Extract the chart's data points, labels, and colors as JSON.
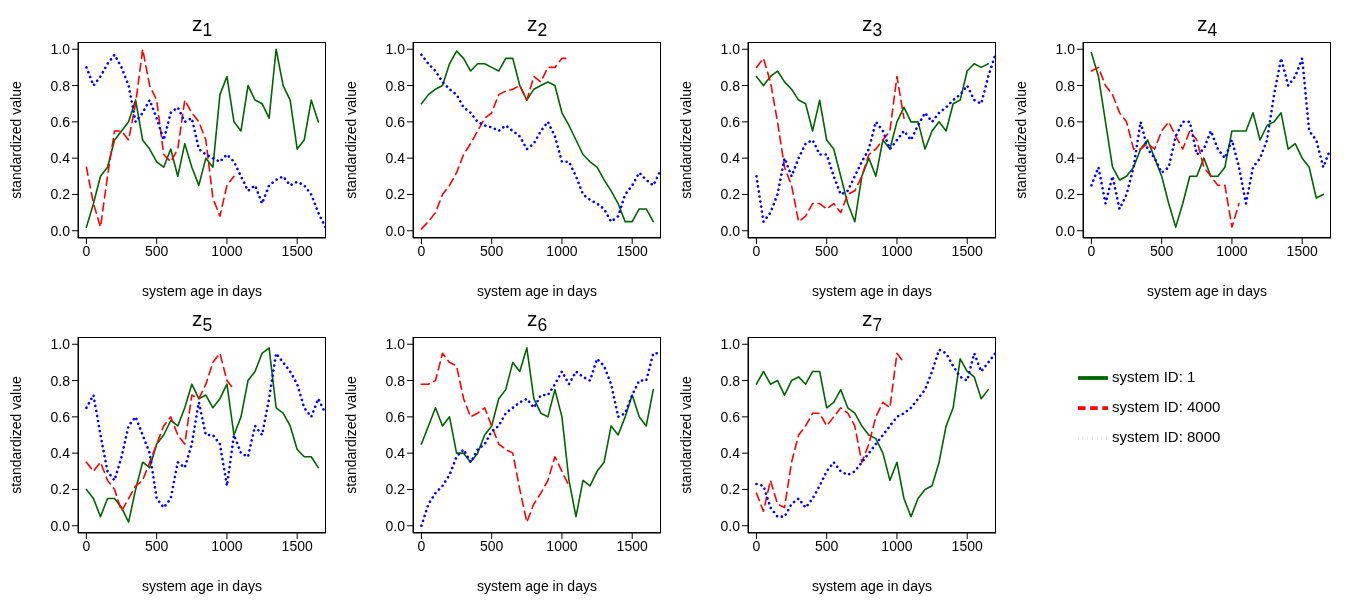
{
  "chart_data": [
    {
      "type": "line",
      "title": "z$_{1}$",
      "xlabel": "system age in days",
      "ylabel": "standardized value",
      "xlim": [
        -60,
        1705
      ],
      "xticks": [
        0,
        500,
        1000,
        1500
      ],
      "ylim": [
        -0.04,
        1.04
      ],
      "yticks": [
        {
          "value": 0,
          "label": "0.0"
        },
        {
          "value": 0.2,
          "label": "0.2"
        },
        {
          "value": 0.4,
          "label": "0.4"
        },
        {
          "value": 0.6,
          "label": "0.6"
        },
        {
          "value": 0.8,
          "label": "0.8"
        },
        {
          "value": 1,
          "label": "1.0"
        }
      ],
      "grid": false,
      "legend": false,
      "series": [
        {
          "color": "#006400",
          "line_style": "solid",
          "x": [
            0,
            50,
            100,
            150,
            200,
            250,
            300,
            350,
            400,
            450,
            500,
            550,
            600,
            650,
            700,
            750,
            800,
            850,
            900,
            950,
            1000,
            1050,
            1100,
            1150,
            1200,
            1250,
            1300,
            1350,
            1400,
            1450,
            1500,
            1550,
            1600,
            1650
          ],
          "values": [
            0.02,
            0.15,
            0.3,
            0.35,
            0.5,
            0.55,
            0.6,
            0.72,
            0.5,
            0.45,
            0.38,
            0.35,
            0.45,
            0.3,
            0.48,
            0.35,
            0.25,
            0.4,
            0.35,
            0.75,
            0.85,
            0.6,
            0.55,
            0.8,
            0.72,
            0.7,
            0.62,
            1.0,
            0.8,
            0.72,
            0.45,
            0.5,
            0.72,
            0.6
          ]
        },
        {
          "color": "#ff0000",
          "line_style": "dashed",
          "x": [
            0,
            50,
            100,
            150,
            200,
            250,
            300,
            350,
            400,
            450,
            500,
            550,
            600,
            650,
            700,
            750,
            800,
            850,
            900,
            950,
            1000,
            1050
          ],
          "values": [
            0.35,
            0.15,
            0.02,
            0.3,
            0.55,
            0.55,
            0.5,
            0.7,
            1.0,
            0.8,
            0.72,
            0.42,
            0.38,
            0.45,
            0.72,
            0.65,
            0.6,
            0.5,
            0.18,
            0.08,
            0.25,
            0.3
          ]
        },
        {
          "color": "#0000ff",
          "line_style": "dotted",
          "x": [
            0,
            50,
            100,
            150,
            200,
            250,
            300,
            350,
            400,
            450,
            500,
            550,
            600,
            650,
            700,
            750,
            800,
            850,
            900,
            950,
            1000,
            1050,
            1100,
            1150,
            1200,
            1250,
            1300,
            1350,
            1400,
            1450,
            1500,
            1550,
            1600,
            1650,
            1700
          ],
          "values": [
            0.9,
            0.8,
            0.85,
            0.92,
            0.97,
            0.9,
            0.8,
            0.6,
            0.65,
            0.72,
            0.62,
            0.5,
            0.65,
            0.68,
            0.6,
            0.62,
            0.45,
            0.42,
            0.4,
            0.38,
            0.42,
            0.38,
            0.3,
            0.22,
            0.25,
            0.15,
            0.25,
            0.28,
            0.3,
            0.25,
            0.27,
            0.25,
            0.2,
            0.1,
            0.02
          ]
        }
      ]
    },
    {
      "type": "line",
      "title": "z$_{2}$",
      "xlabel": "system age in days",
      "ylabel": "standardized value",
      "xlim": [
        -60,
        1705
      ],
      "xticks": [
        0,
        500,
        1000,
        1500
      ],
      "ylim": [
        -0.04,
        1.04
      ],
      "yticks": [
        {
          "value": 0,
          "label": "0.0"
        },
        {
          "value": 0.2,
          "label": "0.2"
        },
        {
          "value": 0.4,
          "label": "0.4"
        },
        {
          "value": 0.6,
          "label": "0.6"
        },
        {
          "value": 0.8,
          "label": "0.8"
        },
        {
          "value": 1,
          "label": "1.0"
        }
      ],
      "grid": false,
      "legend": false,
      "series": [
        {
          "color": "#006400",
          "line_style": "solid",
          "x": [
            0,
            50,
            100,
            150,
            200,
            250,
            300,
            350,
            400,
            450,
            500,
            550,
            600,
            650,
            700,
            750,
            800,
            850,
            900,
            950,
            1000,
            1050,
            1100,
            1150,
            1200,
            1250,
            1300,
            1350,
            1400,
            1450,
            1500,
            1550,
            1600,
            1650
          ],
          "values": [
            0.7,
            0.75,
            0.78,
            0.8,
            0.92,
            0.99,
            0.95,
            0.88,
            0.92,
            0.92,
            0.9,
            0.88,
            0.95,
            0.95,
            0.8,
            0.72,
            0.78,
            0.8,
            0.82,
            0.8,
            0.65,
            0.58,
            0.5,
            0.42,
            0.38,
            0.35,
            0.28,
            0.22,
            0.15,
            0.05,
            0.05,
            0.12,
            0.12,
            0.05
          ]
        },
        {
          "color": "#ff0000",
          "line_style": "dashed",
          "x": [
            0,
            50,
            100,
            150,
            200,
            250,
            300,
            350,
            400,
            450,
            500,
            550,
            600,
            650,
            700,
            750,
            800,
            850,
            900,
            950,
            1000,
            1050
          ],
          "values": [
            0.01,
            0.05,
            0.1,
            0.2,
            0.25,
            0.32,
            0.42,
            0.48,
            0.55,
            0.62,
            0.65,
            0.75,
            0.77,
            0.78,
            0.8,
            0.72,
            0.85,
            0.82,
            0.9,
            0.9,
            0.95,
            0.95
          ]
        },
        {
          "color": "#0000ff",
          "line_style": "dotted",
          "x": [
            0,
            50,
            100,
            150,
            200,
            250,
            300,
            350,
            400,
            450,
            500,
            550,
            600,
            650,
            700,
            750,
            800,
            850,
            900,
            950,
            1000,
            1050,
            1100,
            1150,
            1200,
            1250,
            1300,
            1350,
            1400,
            1450,
            1500,
            1550,
            1600,
            1650,
            1700
          ],
          "values": [
            0.97,
            0.92,
            0.88,
            0.82,
            0.78,
            0.75,
            0.68,
            0.65,
            0.6,
            0.58,
            0.57,
            0.55,
            0.58,
            0.55,
            0.52,
            0.45,
            0.48,
            0.55,
            0.6,
            0.52,
            0.38,
            0.38,
            0.3,
            0.2,
            0.17,
            0.15,
            0.12,
            0.05,
            0.08,
            0.2,
            0.25,
            0.32,
            0.28,
            0.25,
            0.33
          ]
        }
      ]
    },
    {
      "type": "line",
      "title": "z$_{3}$",
      "xlabel": "system age in days",
      "ylabel": "standardized value",
      "xlim": [
        -60,
        1705
      ],
      "xticks": [
        0,
        500,
        1000,
        1500
      ],
      "ylim": [
        -0.04,
        1.04
      ],
      "yticks": [
        {
          "value": 0,
          "label": "0.0"
        },
        {
          "value": 0.2,
          "label": "0.2"
        },
        {
          "value": 0.4,
          "label": "0.4"
        },
        {
          "value": 0.6,
          "label": "0.6"
        },
        {
          "value": 0.8,
          "label": "0.8"
        },
        {
          "value": 1,
          "label": "1.0"
        }
      ],
      "grid": false,
      "legend": false,
      "series": [
        {
          "color": "#006400",
          "line_style": "solid",
          "x": [
            0,
            50,
            100,
            150,
            200,
            250,
            300,
            350,
            400,
            450,
            500,
            550,
            600,
            650,
            700,
            750,
            800,
            850,
            900,
            950,
            1000,
            1050,
            1100,
            1150,
            1200,
            1250,
            1300,
            1350,
            1400,
            1450,
            1500,
            1550,
            1600,
            1650
          ],
          "values": [
            0.85,
            0.8,
            0.85,
            0.88,
            0.82,
            0.78,
            0.72,
            0.7,
            0.55,
            0.72,
            0.5,
            0.45,
            0.3,
            0.15,
            0.05,
            0.3,
            0.4,
            0.3,
            0.5,
            0.45,
            0.6,
            0.68,
            0.6,
            0.6,
            0.45,
            0.55,
            0.6,
            0.55,
            0.7,
            0.72,
            0.88,
            0.92,
            0.9,
            0.92
          ]
        },
        {
          "color": "#ff0000",
          "line_style": "dashed",
          "x": [
            0,
            50,
            100,
            150,
            200,
            250,
            300,
            350,
            400,
            450,
            500,
            550,
            600,
            650,
            700,
            750,
            800,
            850,
            900,
            950,
            1000,
            1050
          ],
          "values": [
            0.9,
            0.95,
            0.82,
            0.6,
            0.35,
            0.25,
            0.05,
            0.08,
            0.15,
            0.15,
            0.12,
            0.15,
            0.1,
            0.2,
            0.22,
            0.3,
            0.42,
            0.45,
            0.5,
            0.55,
            0.85,
            0.62
          ]
        },
        {
          "color": "#0000ff",
          "line_style": "dotted",
          "x": [
            0,
            50,
            100,
            150,
            200,
            250,
            300,
            350,
            400,
            450,
            500,
            550,
            600,
            650,
            700,
            750,
            800,
            850,
            900,
            950,
            1000,
            1050,
            1100,
            1150,
            1200,
            1250,
            1300,
            1350,
            1400,
            1450,
            1500,
            1550,
            1600,
            1650,
            1700
          ],
          "values": [
            0.3,
            0.05,
            0.1,
            0.2,
            0.4,
            0.3,
            0.4,
            0.48,
            0.5,
            0.42,
            0.42,
            0.3,
            0.2,
            0.22,
            0.3,
            0.38,
            0.45,
            0.6,
            0.55,
            0.45,
            0.5,
            0.55,
            0.5,
            0.58,
            0.65,
            0.6,
            0.65,
            0.68,
            0.72,
            0.75,
            0.8,
            0.72,
            0.7,
            0.85,
            0.97
          ]
        }
      ]
    },
    {
      "type": "line",
      "title": "z$_{4}$",
      "xlabel": "system age in days",
      "ylabel": "standardized value",
      "xlim": [
        -60,
        1705
      ],
      "xticks": [
        0,
        500,
        1000,
        1500
      ],
      "ylim": [
        -0.04,
        1.04
      ],
      "yticks": [
        {
          "value": 0,
          "label": "0.0"
        },
        {
          "value": 0.2,
          "label": "0.2"
        },
        {
          "value": 0.4,
          "label": "0.4"
        },
        {
          "value": 0.6,
          "label": "0.6"
        },
        {
          "value": 0.8,
          "label": "0.8"
        },
        {
          "value": 1,
          "label": "1.0"
        }
      ],
      "grid": false,
      "legend": false,
      "series": [
        {
          "color": "#006400",
          "line_style": "solid",
          "x": [
            0,
            50,
            100,
            150,
            200,
            250,
            300,
            350,
            400,
            450,
            500,
            550,
            600,
            650,
            700,
            750,
            800,
            850,
            900,
            950,
            1000,
            1050,
            1100,
            1150,
            1200,
            1250,
            1300,
            1350,
            1400,
            1450,
            1500,
            1550,
            1600,
            1650
          ],
          "values": [
            0.98,
            0.85,
            0.6,
            0.35,
            0.28,
            0.3,
            0.35,
            0.45,
            0.5,
            0.4,
            0.3,
            0.15,
            0.02,
            0.15,
            0.3,
            0.3,
            0.4,
            0.3,
            0.3,
            0.35,
            0.55,
            0.55,
            0.55,
            0.65,
            0.5,
            0.58,
            0.6,
            0.65,
            0.45,
            0.48,
            0.4,
            0.35,
            0.18,
            0.2
          ]
        },
        {
          "color": "#ff0000",
          "line_style": "dashed",
          "x": [
            0,
            50,
            100,
            150,
            200,
            250,
            300,
            350,
            400,
            450,
            500,
            550,
            600,
            650,
            700,
            750,
            800,
            850,
            900,
            950,
            1000,
            1050
          ],
          "values": [
            0.88,
            0.9,
            0.8,
            0.75,
            0.65,
            0.6,
            0.45,
            0.45,
            0.48,
            0.45,
            0.55,
            0.6,
            0.52,
            0.45,
            0.55,
            0.5,
            0.35,
            0.3,
            0.25,
            0.25,
            0.02,
            0.15
          ]
        },
        {
          "color": "#0000ff",
          "line_style": "dotted",
          "x": [
            0,
            50,
            100,
            150,
            200,
            250,
            300,
            350,
            400,
            450,
            500,
            550,
            600,
            650,
            700,
            750,
            800,
            850,
            900,
            950,
            1000,
            1050,
            1100,
            1150,
            1200,
            1250,
            1300,
            1350,
            1400,
            1450,
            1500,
            1550,
            1600,
            1650,
            1700
          ],
          "values": [
            0.25,
            0.35,
            0.15,
            0.3,
            0.12,
            0.2,
            0.35,
            0.6,
            0.45,
            0.4,
            0.32,
            0.35,
            0.52,
            0.6,
            0.6,
            0.42,
            0.45,
            0.55,
            0.45,
            0.4,
            0.5,
            0.35,
            0.15,
            0.35,
            0.4,
            0.5,
            0.75,
            0.95,
            0.8,
            0.85,
            0.95,
            0.55,
            0.5,
            0.35,
            0.45
          ]
        }
      ]
    },
    {
      "type": "line",
      "title": "z$_{5}$",
      "xlabel": "system age in days",
      "ylabel": "standardized value",
      "xlim": [
        -60,
        1705
      ],
      "xticks": [
        0,
        500,
        1000,
        1500
      ],
      "ylim": [
        -0.04,
        1.04
      ],
      "yticks": [
        {
          "value": 0,
          "label": "0.0"
        },
        {
          "value": 0.2,
          "label": "0.2"
        },
        {
          "value": 0.4,
          "label": "0.4"
        },
        {
          "value": 0.6,
          "label": "0.6"
        },
        {
          "value": 0.8,
          "label": "0.8"
        },
        {
          "value": 1,
          "label": "1.0"
        }
      ],
      "grid": false,
      "legend": false,
      "series": [
        {
          "color": "#006400",
          "line_style": "solid",
          "x": [
            0,
            50,
            100,
            150,
            200,
            250,
            300,
            350,
            400,
            450,
            500,
            550,
            600,
            650,
            700,
            750,
            800,
            850,
            900,
            950,
            1000,
            1050,
            1100,
            1150,
            1200,
            1250,
            1300,
            1350,
            1400,
            1450,
            1500,
            1550,
            1600,
            1650
          ],
          "values": [
            0.2,
            0.15,
            0.05,
            0.15,
            0.15,
            0.1,
            0.02,
            0.2,
            0.35,
            0.32,
            0.45,
            0.5,
            0.58,
            0.55,
            0.65,
            0.78,
            0.7,
            0.72,
            0.65,
            0.7,
            0.78,
            0.5,
            0.6,
            0.8,
            0.85,
            0.95,
            0.98,
            0.65,
            0.62,
            0.55,
            0.42,
            0.38,
            0.38,
            0.32
          ]
        },
        {
          "color": "#ff0000",
          "line_style": "dashed",
          "x": [
            0,
            50,
            100,
            150,
            200,
            250,
            300,
            350,
            400,
            450,
            500,
            550,
            600,
            650,
            700,
            750,
            800,
            850,
            900,
            950,
            1000,
            1050
          ],
          "values": [
            0.35,
            0.3,
            0.35,
            0.25,
            0.2,
            0.08,
            0.15,
            0.22,
            0.25,
            0.35,
            0.45,
            0.55,
            0.6,
            0.5,
            0.45,
            0.72,
            0.7,
            0.78,
            0.9,
            0.95,
            0.8,
            0.75
          ]
        },
        {
          "color": "#0000ff",
          "line_style": "dotted",
          "x": [
            0,
            50,
            100,
            150,
            200,
            250,
            300,
            350,
            400,
            450,
            500,
            550,
            600,
            650,
            700,
            750,
            800,
            850,
            900,
            950,
            1000,
            1050,
            1100,
            1150,
            1200,
            1250,
            1300,
            1350,
            1400,
            1450,
            1500,
            1550,
            1600,
            1650,
            1700
          ],
          "values": [
            0.65,
            0.72,
            0.5,
            0.3,
            0.25,
            0.38,
            0.55,
            0.6,
            0.5,
            0.4,
            0.15,
            0.1,
            0.15,
            0.35,
            0.32,
            0.45,
            0.68,
            0.5,
            0.5,
            0.45,
            0.22,
            0.5,
            0.4,
            0.38,
            0.55,
            0.5,
            0.7,
            0.95,
            0.9,
            0.85,
            0.78,
            0.65,
            0.6,
            0.7,
            0.62
          ]
        }
      ]
    },
    {
      "type": "line",
      "title": "z$_{6}$",
      "xlabel": "system age in days",
      "ylabel": "standardized value",
      "xlim": [
        -60,
        1705
      ],
      "xticks": [
        0,
        500,
        1000,
        1500
      ],
      "ylim": [
        -0.04,
        1.04
      ],
      "yticks": [
        {
          "value": 0,
          "label": "0.0"
        },
        {
          "value": 0.2,
          "label": "0.2"
        },
        {
          "value": 0.4,
          "label": "0.4"
        },
        {
          "value": 0.6,
          "label": "0.6"
        },
        {
          "value": 0.8,
          "label": "0.8"
        },
        {
          "value": 1,
          "label": "1.0"
        }
      ],
      "grid": false,
      "legend": false,
      "series": [
        {
          "color": "#006400",
          "line_style": "solid",
          "x": [
            0,
            50,
            100,
            150,
            200,
            250,
            300,
            350,
            400,
            450,
            500,
            550,
            600,
            650,
            700,
            750,
            800,
            850,
            900,
            950,
            1000,
            1050,
            1100,
            1150,
            1200,
            1250,
            1300,
            1350,
            1400,
            1450,
            1500,
            1550,
            1600,
            1650
          ],
          "values": [
            0.45,
            0.55,
            0.65,
            0.55,
            0.6,
            0.4,
            0.4,
            0.35,
            0.4,
            0.5,
            0.55,
            0.7,
            0.75,
            0.9,
            0.85,
            0.98,
            0.7,
            0.62,
            0.6,
            0.75,
            0.6,
            0.25,
            0.05,
            0.25,
            0.22,
            0.3,
            0.35,
            0.55,
            0.5,
            0.6,
            0.72,
            0.6,
            0.55,
            0.75
          ]
        },
        {
          "color": "#ff0000",
          "line_style": "dashed",
          "x": [
            0,
            50,
            100,
            150,
            200,
            250,
            300,
            350,
            400,
            450,
            500,
            550,
            600,
            650,
            700,
            750,
            800,
            850,
            900,
            950,
            1000,
            1050
          ],
          "values": [
            0.78,
            0.78,
            0.8,
            0.95,
            0.9,
            0.88,
            0.7,
            0.6,
            0.62,
            0.65,
            0.55,
            0.45,
            0.42,
            0.4,
            0.2,
            0.02,
            0.12,
            0.18,
            0.25,
            0.38,
            0.3,
            0.22
          ]
        },
        {
          "color": "#0000ff",
          "line_style": "dotted",
          "x": [
            0,
            50,
            100,
            150,
            200,
            250,
            300,
            350,
            400,
            450,
            500,
            550,
            600,
            650,
            700,
            750,
            800,
            850,
            900,
            950,
            1000,
            1050,
            1100,
            1150,
            1200,
            1250,
            1300,
            1350,
            1400,
            1450,
            1500,
            1550,
            1600,
            1650,
            1700
          ],
          "values": [
            0.0,
            0.12,
            0.18,
            0.22,
            0.28,
            0.38,
            0.42,
            0.35,
            0.42,
            0.45,
            0.52,
            0.55,
            0.62,
            0.65,
            0.68,
            0.7,
            0.65,
            0.72,
            0.72,
            0.78,
            0.85,
            0.78,
            0.85,
            0.82,
            0.8,
            0.92,
            0.88,
            0.78,
            0.6,
            0.62,
            0.72,
            0.8,
            0.8,
            0.95,
            0.95
          ]
        }
      ]
    },
    {
      "type": "line",
      "title": "z$_{7}$",
      "xlabel": "system age in days",
      "ylabel": "standardized value",
      "xlim": [
        -60,
        1705
      ],
      "xticks": [
        0,
        500,
        1000,
        1500
      ],
      "ylim": [
        -0.04,
        1.04
      ],
      "yticks": [
        {
          "value": 0,
          "label": "0.0"
        },
        {
          "value": 0.2,
          "label": "0.2"
        },
        {
          "value": 0.4,
          "label": "0.4"
        },
        {
          "value": 0.6,
          "label": "0.6"
        },
        {
          "value": 0.8,
          "label": "0.8"
        },
        {
          "value": 1,
          "label": "1.0"
        }
      ],
      "grid": false,
      "legend": "right",
      "series": [
        {
          "name": "system ID: 1",
          "color": "#006400",
          "line_style": "solid",
          "x": [
            0,
            50,
            100,
            150,
            200,
            250,
            300,
            350,
            400,
            450,
            500,
            550,
            600,
            650,
            700,
            750,
            800,
            850,
            900,
            950,
            1000,
            1050,
            1100,
            1150,
            1200,
            1250,
            1300,
            1350,
            1400,
            1450,
            1500,
            1550,
            1600,
            1650
          ],
          "values": [
            0.78,
            0.85,
            0.78,
            0.8,
            0.72,
            0.8,
            0.82,
            0.78,
            0.85,
            0.85,
            0.65,
            0.68,
            0.75,
            0.65,
            0.62,
            0.55,
            0.5,
            0.48,
            0.4,
            0.25,
            0.35,
            0.15,
            0.05,
            0.15,
            0.2,
            0.22,
            0.35,
            0.55,
            0.65,
            0.92,
            0.85,
            0.82,
            0.7,
            0.75
          ]
        },
        {
          "name": "system ID: 4000",
          "color": "#ff0000",
          "line_style": "dashed",
          "x": [
            0,
            50,
            100,
            150,
            200,
            250,
            300,
            350,
            400,
            450,
            500,
            550,
            600,
            650,
            700,
            750,
            800,
            850,
            900,
            950,
            1000,
            1050
          ],
          "values": [
            0.18,
            0.08,
            0.25,
            0.12,
            0.1,
            0.35,
            0.5,
            0.55,
            0.62,
            0.62,
            0.55,
            0.6,
            0.65,
            0.62,
            0.55,
            0.35,
            0.45,
            0.6,
            0.68,
            0.65,
            0.95,
            0.9
          ]
        },
        {
          "name": "system ID: 8000",
          "color": "#0000ff",
          "line_style": "dotted",
          "x": [
            0,
            50,
            100,
            150,
            200,
            250,
            300,
            350,
            400,
            450,
            500,
            550,
            600,
            650,
            700,
            750,
            800,
            850,
            900,
            950,
            1000,
            1050,
            1100,
            1150,
            1200,
            1250,
            1300,
            1350,
            1400,
            1450,
            1500,
            1550,
            1600,
            1650,
            1700
          ],
          "values": [
            0.23,
            0.22,
            0.1,
            0.05,
            0.05,
            0.12,
            0.15,
            0.1,
            0.15,
            0.22,
            0.3,
            0.35,
            0.3,
            0.28,
            0.3,
            0.35,
            0.4,
            0.45,
            0.5,
            0.55,
            0.6,
            0.62,
            0.65,
            0.7,
            0.75,
            0.85,
            0.97,
            0.95,
            0.88,
            0.82,
            0.8,
            0.95,
            0.85,
            0.9,
            0.95
          ]
        }
      ]
    }
  ]
}
